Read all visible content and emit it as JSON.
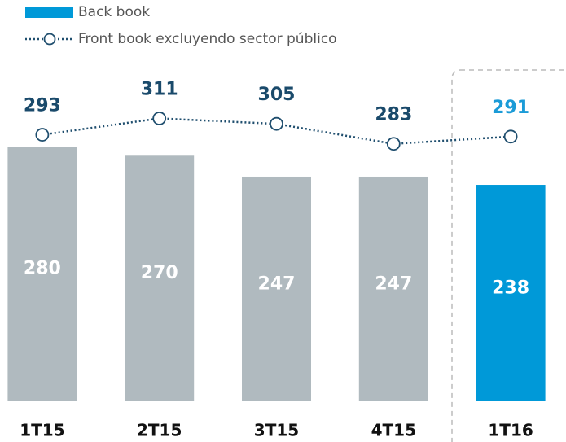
{
  "chart_data": {
    "type": "bar",
    "categories": [
      "1T15",
      "2T15",
      "3T15",
      "4T15",
      "1T16"
    ],
    "series": [
      {
        "name": "Back book",
        "type": "bar",
        "color": "#0099d8",
        "colors": [
          "#b0babf",
          "#b0babf",
          "#b0babf",
          "#b0babf",
          "#0099d8"
        ],
        "values": [
          280,
          270,
          247,
          247,
          238
        ]
      },
      {
        "name": "Front book excluyendo sector público",
        "type": "line",
        "color": "#1f4e6e",
        "label_colors": [
          "#1a4a6b",
          "#1a4a6b",
          "#1a4a6b",
          "#1a4a6b",
          "#1b9bd7"
        ],
        "values": [
          293,
          311,
          305,
          283,
          291
        ]
      }
    ],
    "ylim": [
      0,
      400
    ]
  }
}
